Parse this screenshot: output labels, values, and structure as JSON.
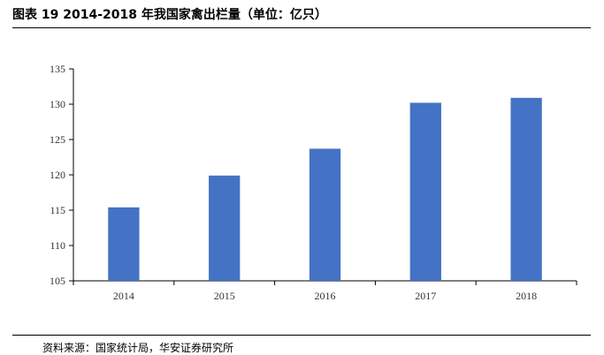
{
  "title": "图表 19 2014-2018 年我国家禽出栏量（单位：亿只）",
  "source": "资料来源：国家统计局，华安证券研究所",
  "chart_data": {
    "type": "bar",
    "categories": [
      "2014",
      "2015",
      "2016",
      "2017",
      "2018"
    ],
    "values": [
      115.4,
      119.9,
      123.7,
      130.2,
      130.9
    ],
    "title": "图表 19 2014-2018 年我国家禽出栏量（单位：亿只）",
    "xlabel": "",
    "ylabel": "",
    "ylim": [
      105,
      135
    ],
    "yticks": [
      105,
      110,
      115,
      120,
      125,
      130,
      135
    ],
    "grid": false,
    "legend": "none",
    "bar_color": "#4472C4"
  }
}
